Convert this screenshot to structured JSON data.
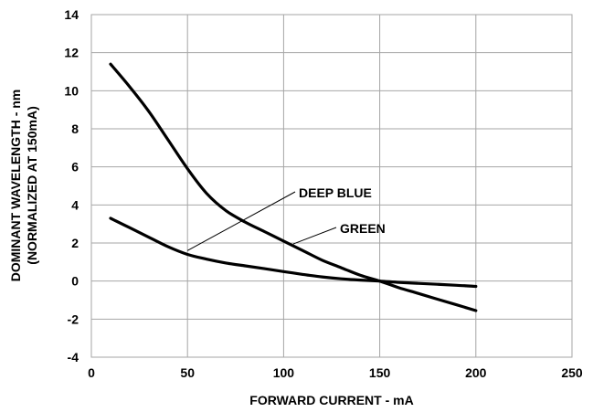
{
  "chart_data": {
    "type": "line",
    "xlabel": "FORWARD CURRENT - mA",
    "ylabel_lines": [
      "DOMINANT WAVELENGTH - nm",
      "(NORMALIZED AT 150mA)"
    ],
    "xlim": [
      0,
      250
    ],
    "ylim": [
      -4,
      14
    ],
    "xticks": [
      0,
      50,
      100,
      150,
      200,
      250
    ],
    "yticks": [
      -4,
      -2,
      0,
      2,
      4,
      6,
      8,
      10,
      12,
      14
    ],
    "grid": true,
    "series": [
      {
        "name": "GREEN",
        "x": [
          10,
          20,
          30,
          40,
          50,
          60,
          70,
          80,
          90,
          100,
          110,
          120,
          130,
          140,
          150,
          160,
          170,
          180,
          190,
          200
        ],
        "values": [
          11.4,
          10.2,
          8.9,
          7.4,
          5.9,
          4.6,
          3.7,
          3.1,
          2.6,
          2.1,
          1.6,
          1.1,
          0.7,
          0.3,
          0.0,
          -0.35,
          -0.65,
          -0.95,
          -1.25,
          -1.55
        ]
      },
      {
        "name": "DEEP BLUE",
        "x": [
          10,
          20,
          30,
          40,
          50,
          60,
          70,
          80,
          90,
          100,
          110,
          120,
          130,
          140,
          150,
          160,
          170,
          180,
          190,
          200
        ],
        "values": [
          3.3,
          2.8,
          2.3,
          1.8,
          1.4,
          1.15,
          0.95,
          0.8,
          0.65,
          0.5,
          0.35,
          0.22,
          0.12,
          0.05,
          0.0,
          -0.07,
          -0.12,
          -0.17,
          -0.22,
          -0.28
        ]
      }
    ],
    "annotations": [
      {
        "text": "DEEP BLUE",
        "points_to_series": "DEEP BLUE",
        "at_x": 50,
        "at_y": 1.6
      },
      {
        "text": "GREEN",
        "points_to_series": "GREEN",
        "at_x": 105,
        "at_y": 1.95
      }
    ]
  }
}
